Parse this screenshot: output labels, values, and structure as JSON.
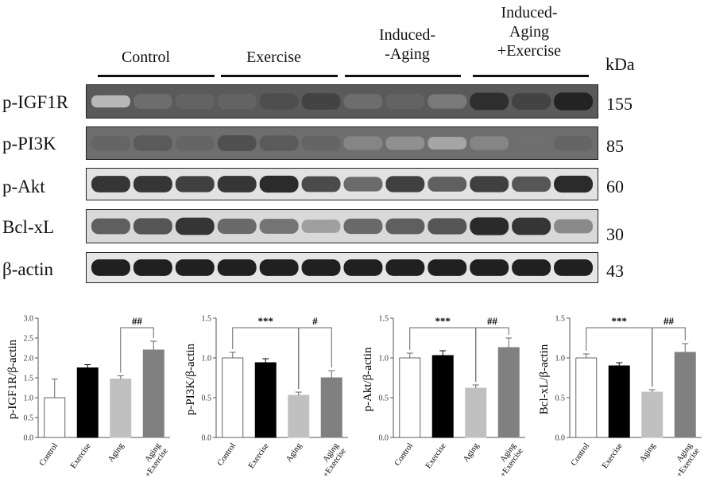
{
  "western_blot": {
    "groups": [
      "Control",
      "Exercise",
      "Induced-\n-Aging",
      "Induced-\nAging\n+Exercise"
    ],
    "group_lines": [
      [
        "Control"
      ],
      [
        "Exercise"
      ],
      [
        "Induced-",
        "-Aging"
      ],
      [
        "Induced-",
        "Aging",
        "+Exercise"
      ]
    ],
    "kda_header": "kDa",
    "rows": [
      {
        "label": "p-IGF1R",
        "kda": "155",
        "intensity": [
          0.2,
          0.55,
          0.6,
          0.6,
          0.7,
          0.75,
          0.55,
          0.6,
          0.5,
          0.85,
          0.75,
          0.9
        ],
        "background": "#5a5a5a"
      },
      {
        "label": "p-PI3K",
        "kda": "85",
        "intensity": [
          0.6,
          0.65,
          0.6,
          0.7,
          0.65,
          0.6,
          0.45,
          0.4,
          0.3,
          0.45,
          0.55,
          0.6
        ],
        "background": "#6e6e6e"
      },
      {
        "label": "p-Akt",
        "kda": "60",
        "intensity": [
          0.85,
          0.85,
          0.8,
          0.85,
          0.9,
          0.75,
          0.6,
          0.8,
          0.65,
          0.8,
          0.7,
          0.9
        ],
        "background": "#e2e2e2"
      },
      {
        "label": "Bcl-xL",
        "kda": "30",
        "intensity": [
          0.65,
          0.7,
          0.85,
          0.6,
          0.55,
          0.35,
          0.6,
          0.65,
          0.7,
          0.9,
          0.85,
          0.45
        ],
        "background": "#d9d9d9"
      },
      {
        "label": "β-actin",
        "kda": "43",
        "intensity": [
          0.95,
          0.95,
          0.95,
          0.95,
          0.95,
          0.95,
          0.95,
          0.95,
          0.95,
          0.95,
          0.95,
          0.95
        ],
        "background": "#e6e6e6"
      }
    ]
  },
  "chart_data": [
    {
      "type": "bar",
      "ylabel": "p-IGF1R/β-actin",
      "categories": [
        "Control",
        "Exercise",
        "Aging",
        "Aging\n+Exercise"
      ],
      "values": [
        1.0,
        1.75,
        1.47,
        2.2
      ],
      "errors": [
        0.47,
        0.08,
        0.08,
        0.22
      ],
      "colors": [
        "#ffffff",
        "#000000",
        "#c0c0c0",
        "#808080"
      ],
      "ylim": [
        0,
        3.0
      ],
      "yticks": [
        "0.0",
        "0.5",
        "1.0",
        "1.5",
        "2.0",
        "2.5",
        "3.0"
      ],
      "annotations": [
        {
          "label": "##",
          "from": 2,
          "to": 3
        }
      ]
    },
    {
      "type": "bar",
      "ylabel": "p-PI3K/β-actin",
      "categories": [
        "Control",
        "Exercise",
        "Aging",
        "Aging\n+Exercise"
      ],
      "values": [
        1.0,
        0.94,
        0.53,
        0.75
      ],
      "errors": [
        0.07,
        0.05,
        0.04,
        0.09
      ],
      "colors": [
        "#ffffff",
        "#000000",
        "#c0c0c0",
        "#808080"
      ],
      "ylim": [
        0,
        1.5
      ],
      "yticks": [
        "0.0",
        "0.5",
        "1.0",
        "1.5"
      ],
      "annotations": [
        {
          "label": "***",
          "from": 0,
          "to": 2
        },
        {
          "label": "#",
          "from": 2,
          "to": 3
        }
      ]
    },
    {
      "type": "bar",
      "ylabel": "p-Akt/β-actin",
      "categories": [
        "Control",
        "Exercise",
        "Aging",
        "Aging\n+Exercise"
      ],
      "values": [
        1.0,
        1.03,
        0.62,
        1.13
      ],
      "errors": [
        0.06,
        0.06,
        0.04,
        0.12
      ],
      "colors": [
        "#ffffff",
        "#000000",
        "#c0c0c0",
        "#808080"
      ],
      "ylim": [
        0,
        1.5
      ],
      "yticks": [
        "0.0",
        "0.5",
        "1.0",
        "1.5"
      ],
      "annotations": [
        {
          "label": "***",
          "from": 0,
          "to": 2
        },
        {
          "label": "##",
          "from": 2,
          "to": 3
        }
      ]
    },
    {
      "type": "bar",
      "ylabel": "Bcl-xL/β-actin",
      "categories": [
        "Control",
        "Exercise",
        "Aging",
        "Aging\n+Exercise"
      ],
      "values": [
        1.0,
        0.9,
        0.57,
        1.07
      ],
      "errors": [
        0.05,
        0.04,
        0.03,
        0.11
      ],
      "colors": [
        "#ffffff",
        "#000000",
        "#c0c0c0",
        "#808080"
      ],
      "ylim": [
        0,
        1.5
      ],
      "yticks": [
        "0.0",
        "0.5",
        "1.0",
        "1.5"
      ],
      "annotations": [
        {
          "label": "***",
          "from": 0,
          "to": 2
        },
        {
          "label": "##",
          "from": 2,
          "to": 3
        }
      ]
    }
  ]
}
